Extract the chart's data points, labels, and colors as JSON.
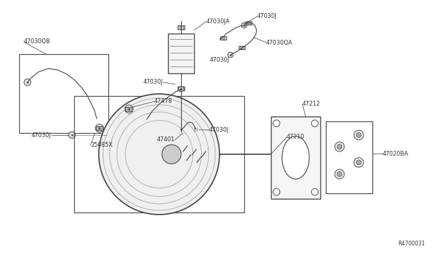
{
  "bg_color": "#ffffff",
  "line_color": "#4a4a4a",
  "text_color": "#333333",
  "ref_id": "R4700031",
  "figsize": [
    6.4,
    3.72
  ],
  "dpi": 100,
  "xlim": [
    0,
    640
  ],
  "ylim": [
    0,
    372
  ]
}
